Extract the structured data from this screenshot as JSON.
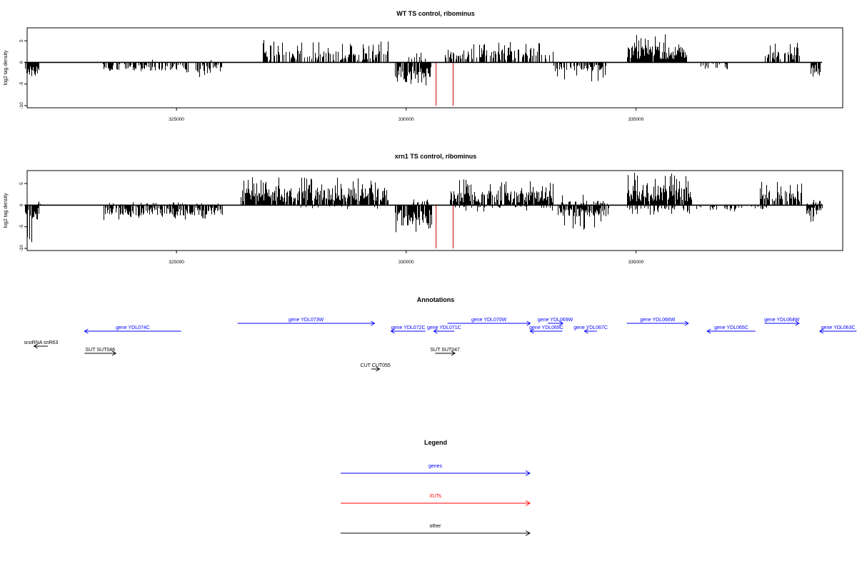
{
  "chart_data": [
    {
      "type": "bar",
      "title": "WT TS control, ribominus",
      "ylabel": "log2 tag density",
      "xlim": [
        321750,
        339500
      ],
      "ylim": [
        -10.5,
        8
      ],
      "xticks": [
        325000,
        330000,
        335000
      ],
      "xtick_labels": [
        "325000",
        "330000",
        "335000"
      ],
      "yticks": [
        -10,
        -5,
        0,
        5
      ],
      "ytick_labels": [
        "-10",
        "-5",
        "0",
        "5"
      ],
      "bar_color": "#000000",
      "marker_color": "#cc0000",
      "marker_lines": [
        {
          "x": 330650,
          "y": -10
        },
        {
          "x": 331020,
          "y": -10
        }
      ],
      "segments": [
        {
          "x0": 321700,
          "x1": 322000,
          "sign": -1,
          "level": 2.5,
          "max": 10,
          "density": 0.9
        },
        {
          "x0": 323400,
          "x1": 325000,
          "sign": -1,
          "level": 1.5,
          "max": 2.2,
          "density": 0.55
        },
        {
          "x0": 325000,
          "x1": 326000,
          "sign": -1,
          "level": 1.6,
          "max": 3.5,
          "density": 0.55
        },
        {
          "x0": 324450,
          "x1": 324900,
          "sign": 1,
          "level": 0.7,
          "max": 2.3,
          "density": 0.12
        },
        {
          "x0": 325700,
          "x1": 325900,
          "sign": 1,
          "level": 0.5,
          "max": 0.8,
          "density": 0.1
        },
        {
          "x0": 326800,
          "x1": 329600,
          "sign": 1,
          "level": 2.0,
          "max": 5.3,
          "density": 0.55
        },
        {
          "x0": 329750,
          "x1": 330550,
          "sign": -1,
          "level": 3.0,
          "max": 5.5,
          "density": 0.85
        },
        {
          "x0": 330000,
          "x1": 330450,
          "sign": 1,
          "level": 1.0,
          "max": 3.0,
          "density": 0.25
        },
        {
          "x0": 330850,
          "x1": 333200,
          "sign": 1,
          "level": 2.2,
          "max": 5.0,
          "density": 0.6
        },
        {
          "x0": 333200,
          "x1": 334350,
          "sign": -1,
          "level": 1.5,
          "max": 4.5,
          "density": 0.55
        },
        {
          "x0": 334800,
          "x1": 336100,
          "sign": 1,
          "level": 2.8,
          "max": 6.5,
          "density": 0.95
        },
        {
          "x0": 336300,
          "x1": 337000,
          "sign": -1,
          "level": 1.2,
          "max": 2.5,
          "density": 0.3
        },
        {
          "x0": 337800,
          "x1": 338550,
          "sign": 1,
          "level": 2.0,
          "max": 5.0,
          "density": 0.55
        },
        {
          "x0": 338800,
          "x1": 339000,
          "sign": -1,
          "level": 2.0,
          "max": 3.5,
          "density": 0.8
        }
      ]
    },
    {
      "type": "bar",
      "title": "xrn1 TS control, ribominus",
      "ylabel": "log2 tag density",
      "xlim": [
        321750,
        339500
      ],
      "ylim": [
        -10.5,
        8
      ],
      "xticks": [
        325000,
        330000,
        335000
      ],
      "xtick_labels": [
        "325000",
        "330000",
        "335000"
      ],
      "yticks": [
        -10,
        -5,
        0,
        5
      ],
      "ytick_labels": [
        "-10",
        "-5",
        "0",
        "5"
      ],
      "bar_color": "#000000",
      "marker_color": "#cc0000",
      "marker_lines": [
        {
          "x": 330650,
          "y": -10
        },
        {
          "x": 331020,
          "y": -10
        }
      ],
      "segments": [
        {
          "x0": 321700,
          "x1": 322000,
          "sign": -1,
          "level": 2.5,
          "max": 10,
          "density": 0.9
        },
        {
          "x0": 321950,
          "x1": 322050,
          "sign": 1,
          "level": 0.8,
          "max": 1.5,
          "density": 0.3
        },
        {
          "x0": 323400,
          "x1": 326000,
          "sign": -1,
          "level": 1.8,
          "max": 3.5,
          "density": 0.75
        },
        {
          "x0": 323400,
          "x1": 326000,
          "sign": 1,
          "level": 0.5,
          "max": 2.0,
          "density": 0.12
        },
        {
          "x0": 326400,
          "x1": 329600,
          "sign": 1,
          "level": 3.0,
          "max": 6.5,
          "density": 0.85
        },
        {
          "x0": 327000,
          "x1": 329500,
          "sign": -1,
          "level": 0.4,
          "max": 1.0,
          "density": 0.1
        },
        {
          "x0": 329750,
          "x1": 330550,
          "sign": -1,
          "level": 3.5,
          "max": 6.5,
          "density": 0.9
        },
        {
          "x0": 330150,
          "x1": 330500,
          "sign": 1,
          "level": 1.0,
          "max": 2.0,
          "density": 0.3
        },
        {
          "x0": 330950,
          "x1": 333200,
          "sign": 1,
          "level": 2.5,
          "max": 6.3,
          "density": 0.8
        },
        {
          "x0": 331000,
          "x1": 333200,
          "sign": -1,
          "level": 0.5,
          "max": 1.5,
          "density": 0.2
        },
        {
          "x0": 333300,
          "x1": 334400,
          "sign": -1,
          "level": 2.0,
          "max": 6.0,
          "density": 0.8
        },
        {
          "x0": 333300,
          "x1": 334400,
          "sign": 1,
          "level": 0.8,
          "max": 2.5,
          "density": 0.25
        },
        {
          "x0": 334800,
          "x1": 336200,
          "sign": 1,
          "level": 3.5,
          "max": 7.5,
          "density": 0.95
        },
        {
          "x0": 334800,
          "x1": 336200,
          "sign": -1,
          "level": 1.0,
          "max": 2.5,
          "density": 0.3
        },
        {
          "x0": 336300,
          "x1": 337900,
          "sign": -1,
          "level": 0.8,
          "max": 1.5,
          "density": 0.25
        },
        {
          "x0": 337700,
          "x1": 338600,
          "sign": 1,
          "level": 2.5,
          "max": 5.5,
          "density": 0.7
        },
        {
          "x0": 338700,
          "x1": 339050,
          "sign": -1,
          "level": 2.0,
          "max": 4.0,
          "density": 0.8
        },
        {
          "x0": 338700,
          "x1": 339050,
          "sign": 1,
          "level": 0.5,
          "max": 1.5,
          "density": 0.3
        }
      ]
    }
  ],
  "annotations": {
    "title": "Annotations",
    "features": [
      {
        "label": "gene YDL074C",
        "start": 325100,
        "end": 323000,
        "type": "gene",
        "row": 1
      },
      {
        "label": "gene YDL073W",
        "start": 326330,
        "end": 329310,
        "type": "gene",
        "row": 0
      },
      {
        "label": "gene YDL072C",
        "start": 330420,
        "end": 329670,
        "type": "gene",
        "row": 1
      },
      {
        "label": "gene YDL071C",
        "start": 331050,
        "end": 330600,
        "type": "gene",
        "row": 1
      },
      {
        "label": "gene YDL070W",
        "start": 330900,
        "end": 332700,
        "type": "gene",
        "row": 0
      },
      {
        "label": "gene YDL069W",
        "start": 333080,
        "end": 333410,
        "type": "gene",
        "row": 0
      },
      {
        "label": "gene YDL069C",
        "start": 333400,
        "end": 332700,
        "type": "gene",
        "row": 1
      },
      {
        "label": "gene YDL067C",
        "start": 334150,
        "end": 333880,
        "type": "gene",
        "row": 1
      },
      {
        "label": "gene YDL066W",
        "start": 334800,
        "end": 336140,
        "type": "gene",
        "row": 0
      },
      {
        "label": "gene YDL065C",
        "start": 337600,
        "end": 336550,
        "type": "gene",
        "row": 1
      },
      {
        "label": "gene YDL064W",
        "start": 337800,
        "end": 338550,
        "type": "gene",
        "row": 0
      },
      {
        "label": "gene YDL063C",
        "start": 339800,
        "end": 339000,
        "type": "gene",
        "row": 1
      },
      {
        "label": "snoRNA snR63",
        "start": 322200,
        "end": 321900,
        "type": "other",
        "row": 2
      },
      {
        "label": "SUT SUT046",
        "start": 323000,
        "end": 323680,
        "type": "other",
        "row": 3
      },
      {
        "label": "SUT SUT047",
        "start": 330630,
        "end": 331060,
        "type": "other",
        "row": 3
      },
      {
        "label": "CUT CUT055",
        "start": 329240,
        "end": 329420,
        "type": "other",
        "row": 4
      }
    ]
  },
  "legend": {
    "title": "Legend",
    "items": [
      {
        "label": "genes",
        "color": "#0000ff"
      },
      {
        "label": "XUTs",
        "color": "#ff0000"
      },
      {
        "label": "other",
        "color": "#000000"
      }
    ]
  },
  "colors": {
    "gene": "#0000ff",
    "other": "#000000",
    "xut": "#ff0000"
  }
}
